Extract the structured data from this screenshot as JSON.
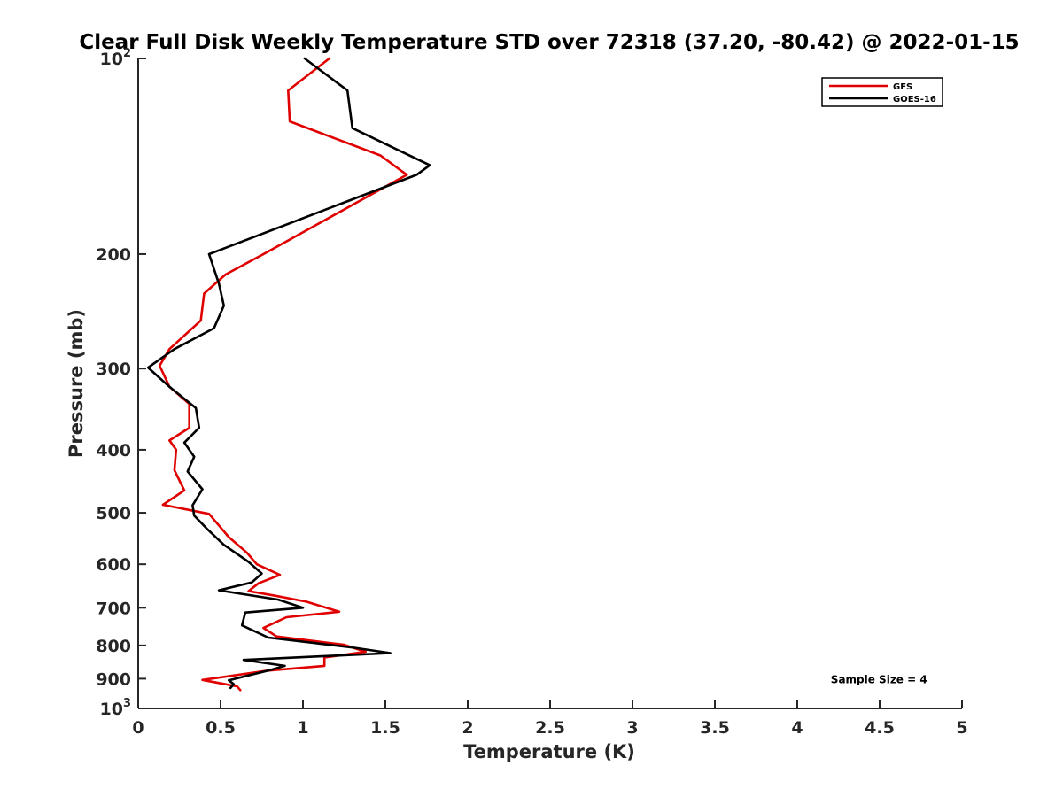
{
  "chart_data": {
    "type": "line",
    "title": "Clear Full Disk Weekly Temperature STD over 72318 (37.20, -80.42) @ 2022-01-15",
    "xlabel": "Temperature (K)",
    "ylabel": "Pressure (mb)",
    "xlim": [
      0,
      5
    ],
    "ylim": [
      100,
      1000
    ],
    "yscale": "log",
    "y_reversed": true,
    "grid": false,
    "legend_position": "top-right",
    "x_ticks": [
      {
        "value": 0,
        "label": "0"
      },
      {
        "value": 0.5,
        "label": "0.5"
      },
      {
        "value": 1,
        "label": "1"
      },
      {
        "value": 1.5,
        "label": "1.5"
      },
      {
        "value": 2,
        "label": "2"
      },
      {
        "value": 2.5,
        "label": "2.5"
      },
      {
        "value": 3,
        "label": "3"
      },
      {
        "value": 3.5,
        "label": "3.5"
      },
      {
        "value": 4,
        "label": "4"
      },
      {
        "value": 4.5,
        "label": "4.5"
      },
      {
        "value": 5,
        "label": "5"
      }
    ],
    "y_ticks": [
      {
        "value": 100,
        "label": "10",
        "sup": "2"
      },
      {
        "value": 200,
        "label": "200",
        "sup": ""
      },
      {
        "value": 300,
        "label": "300",
        "sup": ""
      },
      {
        "value": 400,
        "label": "400",
        "sup": ""
      },
      {
        "value": 500,
        "label": "500",
        "sup": ""
      },
      {
        "value": 600,
        "label": "600",
        "sup": ""
      },
      {
        "value": 700,
        "label": "700",
        "sup": ""
      },
      {
        "value": 800,
        "label": "800",
        "sup": ""
      },
      {
        "value": 900,
        "label": "900",
        "sup": ""
      },
      {
        "value": 1000,
        "label": "10",
        "sup": "3"
      }
    ],
    "series": [
      {
        "name": "GFS",
        "color": "#e00000",
        "points": [
          [
            1.16,
            100
          ],
          [
            0.91,
            112
          ],
          [
            0.92,
            125
          ],
          [
            1.47,
            141
          ],
          [
            1.63,
            151
          ],
          [
            0.76,
            200
          ],
          [
            0.53,
            215
          ],
          [
            0.4,
            230
          ],
          [
            0.38,
            253
          ],
          [
            0.19,
            280
          ],
          [
            0.13,
            297
          ],
          [
            0.19,
            320
          ],
          [
            0.31,
            340
          ],
          [
            0.31,
            370
          ],
          [
            0.19,
            387
          ],
          [
            0.23,
            400
          ],
          [
            0.22,
            430
          ],
          [
            0.28,
            462
          ],
          [
            0.15,
            486
          ],
          [
            0.43,
            502
          ],
          [
            0.55,
            545
          ],
          [
            0.66,
            576
          ],
          [
            0.72,
            600
          ],
          [
            0.86,
            623
          ],
          [
            0.73,
            642
          ],
          [
            0.67,
            660
          ],
          [
            0.82,
            670
          ],
          [
            1.02,
            685
          ],
          [
            1.22,
            710
          ],
          [
            0.9,
            724
          ],
          [
            0.76,
            752
          ],
          [
            0.84,
            775
          ],
          [
            1.25,
            798
          ],
          [
            1.38,
            818
          ],
          [
            1.13,
            835
          ],
          [
            1.13,
            860
          ],
          [
            0.78,
            875
          ],
          [
            0.39,
            904
          ],
          [
            0.6,
            925
          ],
          [
            0.62,
            937
          ]
        ]
      },
      {
        "name": "GOES-16",
        "color": "#000000",
        "points": [
          [
            1.01,
            100
          ],
          [
            1.27,
            112
          ],
          [
            1.3,
            128
          ],
          [
            1.77,
            146
          ],
          [
            1.69,
            151
          ],
          [
            0.43,
            200
          ],
          [
            0.49,
            222
          ],
          [
            0.52,
            240
          ],
          [
            0.46,
            260
          ],
          [
            0.22,
            280
          ],
          [
            0.06,
            299
          ],
          [
            0.19,
            320
          ],
          [
            0.35,
            345
          ],
          [
            0.37,
            370
          ],
          [
            0.28,
            390
          ],
          [
            0.34,
            410
          ],
          [
            0.3,
            432
          ],
          [
            0.39,
            460
          ],
          [
            0.33,
            487
          ],
          [
            0.34,
            505
          ],
          [
            0.42,
            530
          ],
          [
            0.52,
            560
          ],
          [
            0.67,
            595
          ],
          [
            0.75,
            620
          ],
          [
            0.69,
            640
          ],
          [
            0.49,
            658
          ],
          [
            0.85,
            680
          ],
          [
            1.0,
            700
          ],
          [
            0.65,
            712
          ],
          [
            0.63,
            745
          ],
          [
            0.79,
            778
          ],
          [
            1.29,
            805
          ],
          [
            1.53,
            822
          ],
          [
            0.64,
            842
          ],
          [
            0.89,
            860
          ],
          [
            0.8,
            873
          ],
          [
            0.55,
            905
          ],
          [
            0.58,
            918
          ],
          [
            0.56,
            930
          ]
        ]
      }
    ],
    "annotations": [
      {
        "text": "Sample Size = 4",
        "x": 4.3,
        "y": 900
      }
    ]
  }
}
